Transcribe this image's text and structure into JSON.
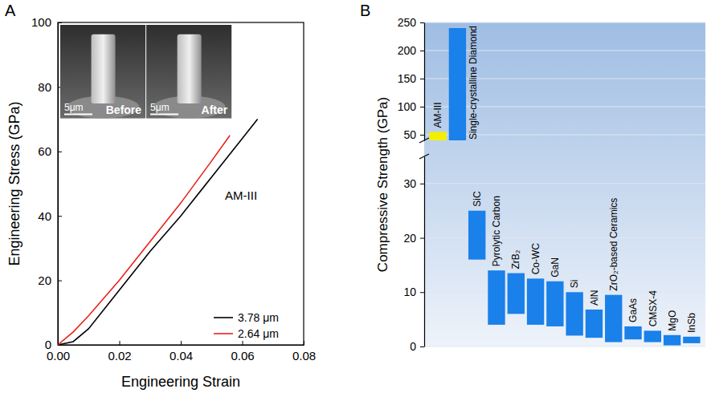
{
  "chart_data": [
    {
      "type": "line",
      "panel_label": "A",
      "xlabel": "Engineering Strain",
      "ylabel": "Engineering Stress (GPa)",
      "xlim": [
        0,
        0.08
      ],
      "xticks": [
        {
          "value": 0,
          "label": "0.00"
        },
        {
          "value": 0.02,
          "label": "0.02"
        },
        {
          "value": 0.04,
          "label": "0.04"
        },
        {
          "value": 0.06,
          "label": "0.06"
        },
        {
          "value": 0.08,
          "label": "0.08"
        }
      ],
      "ylim": [
        0,
        100
      ],
      "yticks": [
        0,
        20,
        40,
        60,
        80,
        100
      ],
      "series": [
        {
          "name": "3.78 μm",
          "color": "#000000",
          "x": [
            0,
            0.005,
            0.01,
            0.02,
            0.03,
            0.04,
            0.05,
            0.06,
            0.065
          ],
          "values": [
            0,
            1,
            5,
            17,
            29,
            40,
            52,
            64,
            70
          ]
        },
        {
          "name": "2.64 μm",
          "color": "#e8221b",
          "x": [
            0,
            0.005,
            0.01,
            0.02,
            0.03,
            0.04,
            0.05,
            0.056
          ],
          "values": [
            0,
            4,
            9,
            20,
            32,
            44,
            57,
            65
          ]
        }
      ],
      "legend": "lower right",
      "annotations": [
        "AM-III"
      ],
      "inset": {
        "panels": [
          "Before",
          "After"
        ],
        "scale_bar": "5μm"
      }
    },
    {
      "type": "range_bar",
      "panel_label": "B",
      "ylabel": "Compressive Strength (GPa)",
      "categories": [
        "AM-III",
        "Single-crystalline Diamond",
        "SiC",
        "Pyrolytic Carbon",
        "ZrB₂",
        "Co-WC",
        "GaN",
        "Si",
        "AlN",
        "ZrO₂-based Ceramics",
        "GaAs",
        "CMSX-4",
        "MgO",
        "InSb"
      ],
      "low": [
        40,
        40,
        16,
        4,
        6,
        4,
        3.7,
        2,
        1.6,
        0.8,
        1.3,
        0.8,
        0.2,
        0.6
      ],
      "high": [
        55,
        240,
        25,
        14,
        13.5,
        12.5,
        12,
        10,
        6.8,
        9.5,
        3.7,
        2.9,
        2.1,
        1.8
      ],
      "colors": [
        "#f2f000",
        "#1a80ea",
        "#1a80ea",
        "#1a80ea",
        "#1a80ea",
        "#1a80ea",
        "#1a80ea",
        "#1a80ea",
        "#1a80ea",
        "#1a80ea",
        "#1a80ea",
        "#1a80ea",
        "#1a80ea",
        "#1a80ea"
      ],
      "segments": [
        {
          "ylim": [
            0,
            35
          ],
          "yticks": [
            0,
            10,
            20,
            30
          ]
        },
        {
          "ylim": [
            40,
            250
          ],
          "yticks": [
            50,
            100,
            150,
            200,
            250
          ]
        }
      ],
      "grid": true,
      "tick_labels": "y"
    }
  ]
}
